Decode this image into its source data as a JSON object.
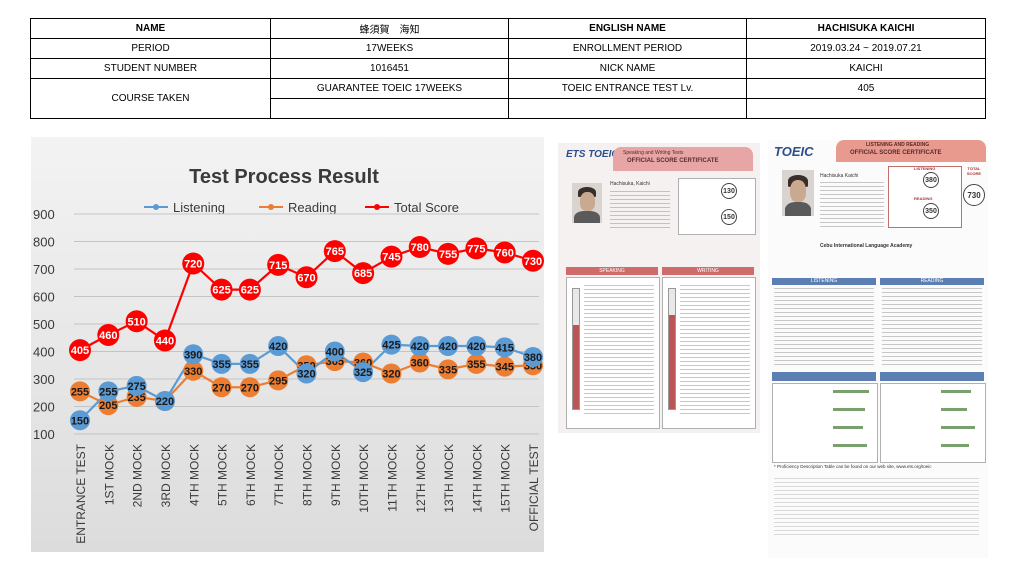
{
  "info": {
    "name_label": "NAME",
    "name_value": "蜂須賀　海知",
    "english_name_label": "ENGLISH NAME",
    "english_name_value": "HACHISUKA KAICHI",
    "period_label": "PERIOD",
    "period_value": "17WEEKS",
    "enrollment_label": "ENROLLMENT PERIOD",
    "enrollment_value": "2019.03.24 ~ 2019.07.21",
    "student_number_label": "STUDENT NUMBER",
    "student_number_value": "1016451",
    "nick_name_label": "NICK NAME",
    "nick_name_value": "KAICHI",
    "course_label": "COURSE TAKEN",
    "course_value": "GUARANTEE TOEIC 17WEEKS",
    "entrance_test_label": "TOEIC ENTRANCE TEST Lv.",
    "entrance_test_value": "405"
  },
  "chart_data": {
    "type": "line",
    "title": "Test Process Result",
    "ylim": [
      100,
      900
    ],
    "yticks": [
      100,
      200,
      300,
      400,
      500,
      600,
      700,
      800,
      900
    ],
    "legend_position": "top",
    "categories": [
      "ENTRANCE TEST",
      "1ST MOCK",
      "2ND MOCK",
      "3RD MOCK",
      "4TH MOCK",
      "5TH MOCK",
      "6TH MOCK",
      "7TH MOCK",
      "8TH MOCK",
      "9TH MOCK",
      "10TH MOCK",
      "11TH MOCK",
      "12TH MOCK",
      "13TH MOCK",
      "14TH MOCK",
      "15TH MOCK",
      "OFFICIAL TEST"
    ],
    "series": [
      {
        "name": "Listening",
        "color": "#5b9bd5",
        "values": [
          150,
          255,
          275,
          220,
          390,
          355,
          355,
          420,
          320,
          400,
          325,
          425,
          420,
          420,
          420,
          415,
          380
        ]
      },
      {
        "name": "Reading",
        "color": "#ed7d31",
        "values": [
          255,
          205,
          235,
          220,
          330,
          270,
          270,
          295,
          350,
          365,
          360,
          320,
          360,
          335,
          355,
          345,
          350
        ]
      },
      {
        "name": "Total Score",
        "color": "#ff0000",
        "values": [
          405,
          460,
          510,
          440,
          720,
          625,
          625,
          715,
          670,
          765,
          685,
          745,
          780,
          755,
          775,
          760,
          730
        ]
      }
    ]
  },
  "sw_cert": {
    "logo": "ETS TOEIC",
    "subtitle": "Speaking and Writing Tests",
    "title": "OFFICIAL SCORE CERTIFICATE",
    "name": "Hachisuka, Kaichi",
    "speaking_score": "130",
    "writing_score": "150",
    "speaking_label": "SPEAKING",
    "writing_label": "WRITING",
    "accent": "#e7a5a5"
  },
  "lr_cert": {
    "logo": "TOEIC",
    "subtitle": "LISTENING AND READING",
    "title": "OFFICIAL SCORE CERTIFICATE",
    "name": "Hachisuka Kaichi",
    "listening_label": "LISTENING",
    "reading_label": "READING",
    "total_label": "TOTAL SCORE",
    "listening_score": "380",
    "reading_score": "350",
    "total_score": "730",
    "institution": "Cebu International Language Academy",
    "footer_note": "* Proficiency Description Table can be found on our web site, www.ets.org/toeic",
    "accent": "#e89a8f"
  }
}
